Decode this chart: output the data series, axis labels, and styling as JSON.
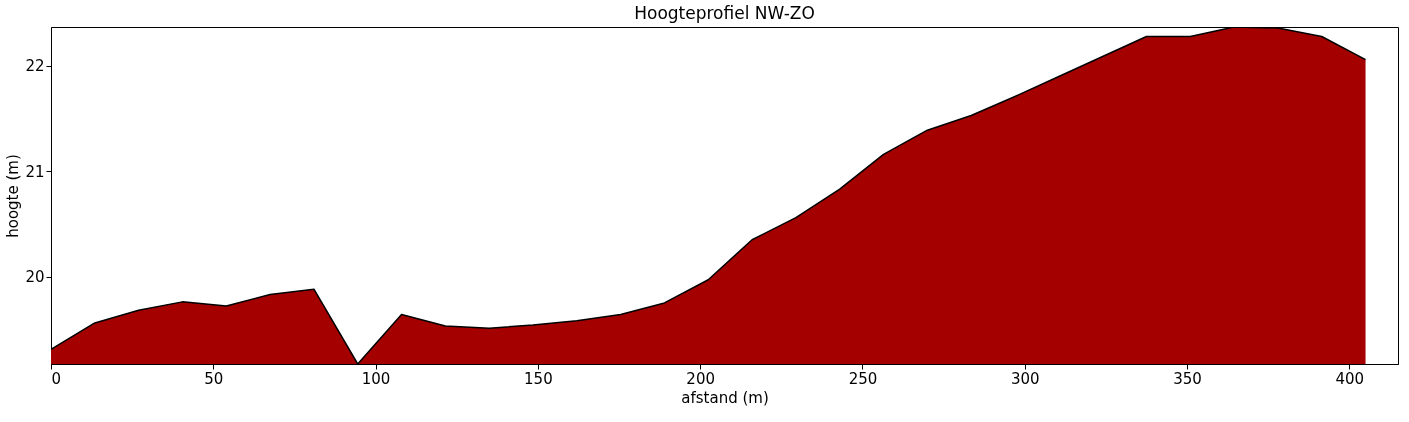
{
  "chart_data": {
    "type": "area",
    "title": "Hoogteprofiel NW-ZO",
    "xlabel": "afstand (m)",
    "ylabel": "hoogte (m)",
    "x": [
      0,
      13.5,
      27,
      40.5,
      54,
      67.5,
      81,
      94.5,
      108,
      121.5,
      135,
      148.5,
      162,
      175.5,
      189,
      202.5,
      216,
      229.5,
      243,
      256.5,
      270,
      283.5,
      297,
      310.5,
      324,
      337.5,
      351,
      364.5,
      378,
      391.5,
      405
    ],
    "series": [
      {
        "color": "#a50000",
        "values": [
          19.31,
          19.56,
          19.68,
          19.76,
          19.72,
          19.83,
          19.88,
          19.17,
          19.64,
          19.53,
          19.51,
          19.54,
          19.58,
          19.64,
          19.75,
          19.97,
          20.35,
          20.56,
          20.83,
          21.16,
          21.39,
          21.53,
          21.71,
          21.9,
          22.09,
          22.28,
          22.28,
          22.37,
          22.36,
          22.28,
          22.06
        ]
      }
    ],
    "xlim": [
      0,
      415
    ],
    "ylim": [
      19.17,
      22.37
    ],
    "xticks": [
      0,
      50,
      100,
      150,
      200,
      250,
      300,
      350,
      400
    ],
    "yticks": [
      20,
      21,
      22
    ],
    "grid": false
  }
}
